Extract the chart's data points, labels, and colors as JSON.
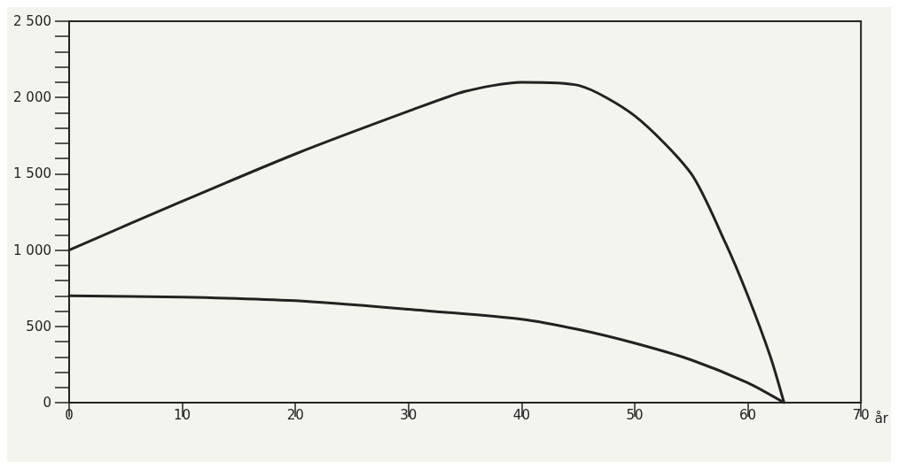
{
  "chart_data": {
    "type": "line",
    "xlabel": "år",
    "xlim": [
      0,
      70
    ],
    "xticks": [
      0,
      10,
      20,
      30,
      40,
      50,
      60,
      70
    ],
    "ylim": [
      0,
      2500
    ],
    "yticks": [
      {
        "value": 0,
        "label": "0"
      },
      {
        "value": 100,
        "label": null
      },
      {
        "value": 200,
        "label": null
      },
      {
        "value": 300,
        "label": null
      },
      {
        "value": 400,
        "label": null
      },
      {
        "value": 500,
        "label": "500"
      },
      {
        "value": 600,
        "label": null
      },
      {
        "value": 700,
        "label": null
      },
      {
        "value": 800,
        "label": null
      },
      {
        "value": 900,
        "label": null
      },
      {
        "value": 1000,
        "label": "1 000"
      },
      {
        "value": 1100,
        "label": null
      },
      {
        "value": 1200,
        "label": null
      },
      {
        "value": 1300,
        "label": null
      },
      {
        "value": 1400,
        "label": null
      },
      {
        "value": 1500,
        "label": "1 500"
      },
      {
        "value": 1600,
        "label": null
      },
      {
        "value": 1700,
        "label": null
      },
      {
        "value": 1800,
        "label": null
      },
      {
        "value": 1900,
        "label": null
      },
      {
        "value": 2000,
        "label": "2 000"
      },
      {
        "value": 2100,
        "label": null
      },
      {
        "value": 2200,
        "label": null
      },
      {
        "value": 2300,
        "label": null
      },
      {
        "value": 2400,
        "label": null
      },
      {
        "value": 2500,
        "label": "2 500"
      }
    ],
    "grid": false,
    "marker": "none",
    "line_style": "solid",
    "series": [
      {
        "color": "#222222",
        "x": [
          0,
          10,
          20,
          30,
          35,
          40,
          45,
          50,
          55,
          58,
          60,
          62,
          63.2
        ],
        "values": [
          1000,
          1320,
          1630,
          1910,
          2040,
          2100,
          2080,
          1880,
          1500,
          1050,
          700,
          300,
          0
        ]
      },
      {
        "color": "#222222",
        "x": [
          0,
          10,
          20,
          30,
          40,
          45,
          50,
          55,
          60,
          63.2
        ],
        "values": [
          700,
          692,
          668,
          612,
          547,
          480,
          390,
          280,
          130,
          0
        ]
      }
    ]
  }
}
